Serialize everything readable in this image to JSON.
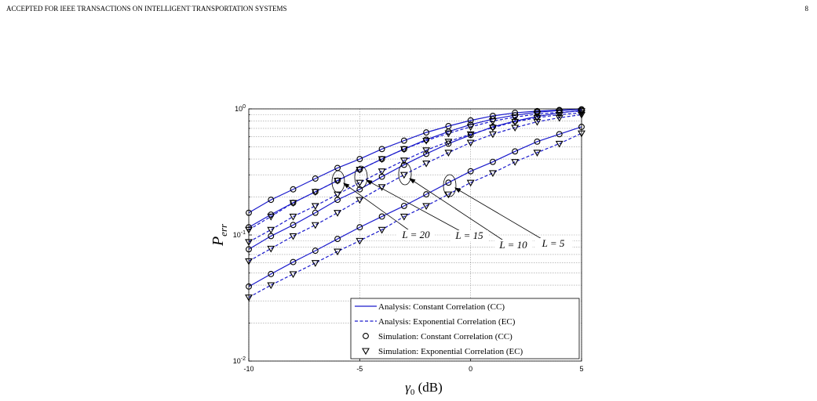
{
  "header": {
    "title": "ACCEPTED FOR IEEE TRANSACTIONS ON INTELLIGENT TRANSPORTATION SYSTEMS",
    "page": "8"
  },
  "chart_data": {
    "type": "line",
    "xlabel": {
      "main": "γ",
      "sub": "0",
      "rest": " (dB)"
    },
    "ylabel": {
      "main": "P",
      "sub": "err"
    },
    "x": [
      -10,
      -9,
      -8,
      -7,
      -6,
      -5,
      -4,
      -3,
      -2,
      -1,
      0,
      1,
      2,
      3,
      4,
      5
    ],
    "xlim": [
      -10,
      5
    ],
    "xticks": [
      -10,
      -5,
      0,
      5
    ],
    "ylim": [
      0.01,
      1
    ],
    "log_y": true,
    "grid": true,
    "yticks": [
      {
        "value": 0.01,
        "label": {
          "base": "10",
          "exp": "-2"
        }
      },
      {
        "value": 0.1,
        "label": {
          "base": "10",
          "exp": "-1"
        }
      },
      {
        "value": 1,
        "label": {
          "base": "10",
          "exp": "0"
        }
      }
    ],
    "yminor": [
      0.02,
      0.03,
      0.04,
      0.05,
      0.06,
      0.07,
      0.08,
      0.09,
      0.2,
      0.3,
      0.4,
      0.5,
      0.6,
      0.7,
      0.8,
      0.9
    ],
    "line_color": "#1a1acc",
    "marker_color": "#000000",
    "legend": [
      "Analysis: Constant Correlation (CC)",
      "Analysis: Exponential Correlation (EC)",
      "Simulation: Constant Correlation (CC)",
      "Simulation: Exponential Correlation (EC)"
    ],
    "curves": [
      {
        "label": "L = 20",
        "cc": [
          0.15,
          0.19,
          0.23,
          0.28,
          0.34,
          0.4,
          0.48,
          0.56,
          0.65,
          0.73,
          0.81,
          0.88,
          0.93,
          0.96,
          0.98,
          0.99
        ],
        "ec": [
          0.11,
          0.14,
          0.18,
          0.22,
          0.27,
          0.33,
          0.4,
          0.48,
          0.56,
          0.64,
          0.72,
          0.8,
          0.86,
          0.91,
          0.94,
          0.96
        ]
      },
      {
        "label": "L = 15",
        "cc": [
          0.115,
          0.145,
          0.18,
          0.22,
          0.27,
          0.33,
          0.4,
          0.48,
          0.57,
          0.66,
          0.75,
          0.83,
          0.89,
          0.94,
          0.97,
          0.99
        ],
        "ec": [
          0.088,
          0.11,
          0.14,
          0.17,
          0.21,
          0.26,
          0.32,
          0.39,
          0.47,
          0.55,
          0.63,
          0.71,
          0.79,
          0.85,
          0.9,
          0.93
        ]
      },
      {
        "label": "L = 10",
        "cc": [
          0.077,
          0.098,
          0.12,
          0.15,
          0.19,
          0.23,
          0.29,
          0.36,
          0.44,
          0.53,
          0.62,
          0.72,
          0.8,
          0.87,
          0.93,
          0.97
        ],
        "ec": [
          0.062,
          0.078,
          0.098,
          0.12,
          0.15,
          0.19,
          0.24,
          0.3,
          0.37,
          0.45,
          0.54,
          0.63,
          0.71,
          0.79,
          0.85,
          0.9
        ]
      },
      {
        "label": "L = 5",
        "cc": [
          0.039,
          0.049,
          0.061,
          0.075,
          0.093,
          0.115,
          0.14,
          0.17,
          0.21,
          0.26,
          0.32,
          0.38,
          0.46,
          0.55,
          0.63,
          0.72
        ],
        "ec": [
          0.032,
          0.04,
          0.049,
          0.06,
          0.074,
          0.09,
          0.11,
          0.14,
          0.17,
          0.21,
          0.26,
          0.31,
          0.38,
          0.45,
          0.53,
          0.64
        ]
      }
    ]
  }
}
